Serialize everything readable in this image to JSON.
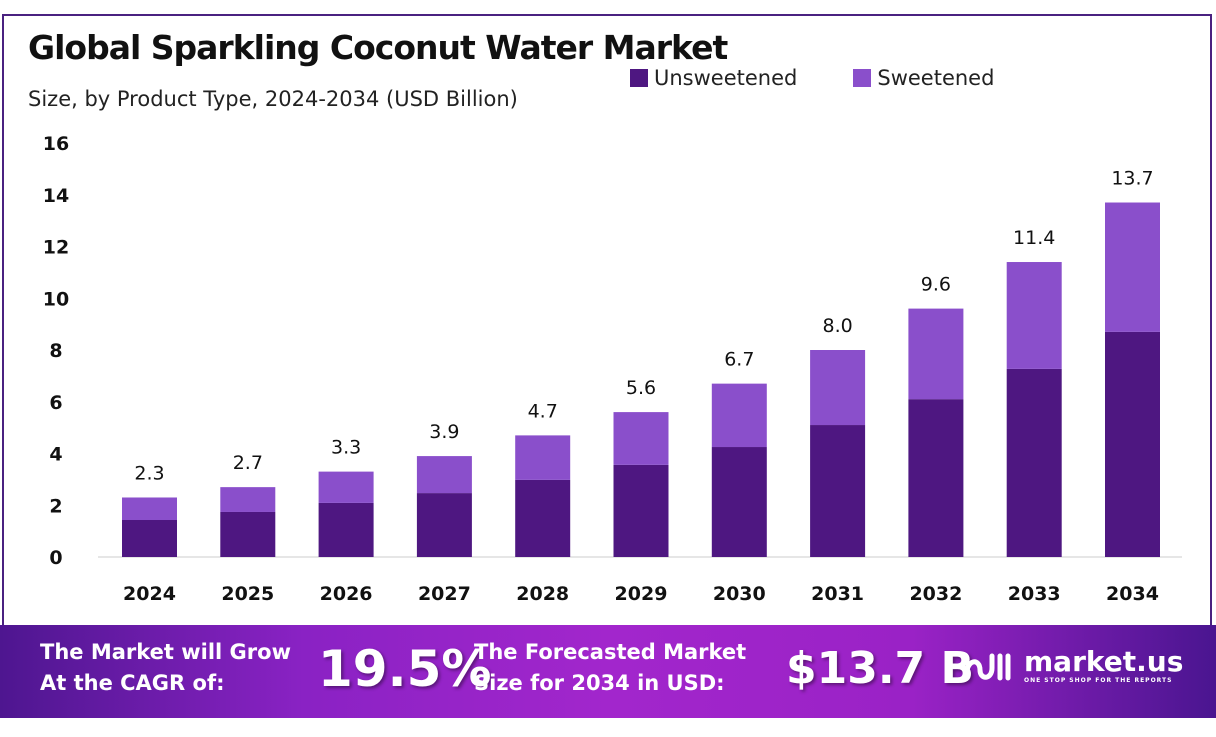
{
  "chart_data": {
    "type": "bar",
    "stacked": true,
    "title": "Global Sparkling Coconut Water Market",
    "subtitle": "Size, by Product Type, 2024-2034 (USD Billion)",
    "categories": [
      "2024",
      "2025",
      "2026",
      "2027",
      "2028",
      "2029",
      "2030",
      "2031",
      "2032",
      "2033",
      "2034"
    ],
    "series": [
      {
        "name": "Unsweetened",
        "color": "#4e1781",
        "values": [
          1.43,
          1.74,
          2.09,
          2.47,
          2.98,
          3.56,
          4.25,
          5.1,
          6.1,
          7.27,
          8.7
        ]
      },
      {
        "name": "Sweetened",
        "color": "#8a4fcb",
        "values": [
          0.87,
          0.96,
          1.21,
          1.43,
          1.72,
          2.04,
          2.45,
          2.9,
          3.5,
          4.13,
          5.0
        ]
      }
    ],
    "totals": [
      "2.3",
      "2.7",
      "3.3",
      "3.9",
      "4.7",
      "5.6",
      "6.7",
      "8.0",
      "9.6",
      "11.4",
      "13.7"
    ],
    "yticks": [
      "0",
      "2",
      "4",
      "6",
      "8",
      "10",
      "12",
      "14",
      "16"
    ],
    "ylim": [
      0,
      16
    ],
    "grid": false,
    "legend_position": "top-right"
  },
  "banner": {
    "cagr_text_1": "The Market will Grow",
    "cagr_text_2": "At the CAGR of:",
    "cagr_value": "19.5%",
    "forecast_text_1": "The Forecasted Market",
    "forecast_text_2": "Size for 2034 in USD:",
    "forecast_value": "$13.7 B",
    "logo_name": "market.us",
    "logo_tagline": "ONE STOP SHOP FOR THE REPORTS"
  }
}
